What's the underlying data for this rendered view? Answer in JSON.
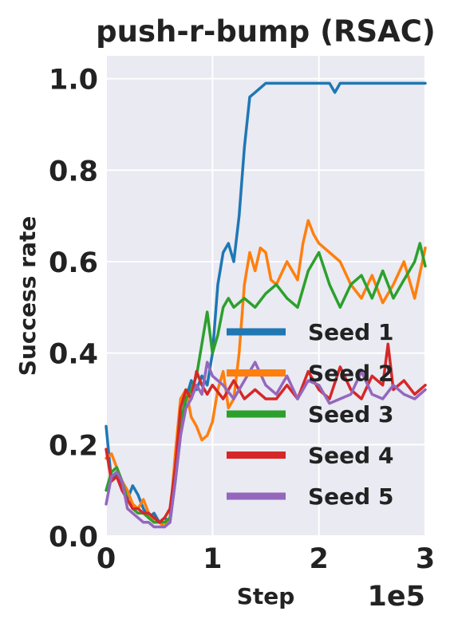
{
  "chart_data": {
    "type": "line",
    "title": "push-r-bump (RSAC)",
    "xlabel": "Step",
    "ylabel": "Success rate",
    "x_multiplier_label": "1e5",
    "xlim": [
      0,
      3
    ],
    "ylim": [
      0,
      1.05
    ],
    "x_ticks": [
      0,
      1,
      2,
      3
    ],
    "x_tick_labels": [
      "0",
      "1",
      "2",
      "3"
    ],
    "y_ticks": [
      0,
      0.2,
      0.4,
      0.6,
      0.8,
      1.0
    ],
    "y_tick_labels": [
      "0.0",
      "0.2",
      "0.4",
      "0.6",
      "0.8",
      "1.0"
    ],
    "grid": true,
    "legend_position": "lower-right",
    "series": [
      {
        "name": "Seed 1",
        "color": "#1f77b4",
        "x": [
          0,
          0.05,
          0.1,
          0.15,
          0.2,
          0.25,
          0.3,
          0.35,
          0.4,
          0.45,
          0.5,
          0.55,
          0.6,
          0.65,
          0.7,
          0.75,
          0.8,
          0.85,
          0.9,
          0.95,
          1.0,
          1.05,
          1.1,
          1.15,
          1.2,
          1.25,
          1.3,
          1.35,
          1.4,
          1.5,
          1.6,
          1.7,
          1.8,
          1.9,
          2.0,
          2.1,
          2.15,
          2.2,
          2.3,
          2.4,
          2.5,
          2.6,
          2.7,
          2.8,
          2.9,
          3.0
        ],
        "y": [
          0.24,
          0.12,
          0.14,
          0.1,
          0.08,
          0.11,
          0.09,
          0.06,
          0.04,
          0.05,
          0.03,
          0.04,
          0.03,
          0.12,
          0.22,
          0.3,
          0.34,
          0.32,
          0.35,
          0.33,
          0.4,
          0.55,
          0.62,
          0.64,
          0.6,
          0.7,
          0.85,
          0.96,
          0.97,
          0.99,
          0.99,
          0.99,
          0.99,
          0.99,
          0.99,
          0.99,
          0.97,
          0.99,
          0.99,
          0.99,
          0.99,
          0.99,
          0.99,
          0.99,
          0.99,
          0.99
        ]
      },
      {
        "name": "Seed 2",
        "color": "#ff7f0e",
        "x": [
          0,
          0.05,
          0.1,
          0.15,
          0.2,
          0.25,
          0.3,
          0.35,
          0.4,
          0.45,
          0.5,
          0.55,
          0.6,
          0.65,
          0.7,
          0.75,
          0.8,
          0.85,
          0.9,
          0.95,
          1.0,
          1.05,
          1.1,
          1.15,
          1.2,
          1.25,
          1.3,
          1.35,
          1.4,
          1.45,
          1.5,
          1.55,
          1.6,
          1.7,
          1.8,
          1.85,
          1.9,
          1.95,
          2.0,
          2.1,
          2.2,
          2.3,
          2.4,
          2.5,
          2.6,
          2.7,
          2.8,
          2.9,
          3.0
        ],
        "y": [
          0.17,
          0.18,
          0.15,
          0.12,
          0.1,
          0.07,
          0.06,
          0.08,
          0.05,
          0.03,
          0.03,
          0.02,
          0.04,
          0.18,
          0.3,
          0.32,
          0.26,
          0.24,
          0.21,
          0.22,
          0.25,
          0.32,
          0.36,
          0.28,
          0.3,
          0.4,
          0.55,
          0.62,
          0.58,
          0.63,
          0.62,
          0.56,
          0.55,
          0.6,
          0.56,
          0.64,
          0.69,
          0.66,
          0.64,
          0.62,
          0.6,
          0.55,
          0.52,
          0.57,
          0.51,
          0.55,
          0.6,
          0.52,
          0.63
        ]
      },
      {
        "name": "Seed 3",
        "color": "#2ca02c",
        "x": [
          0,
          0.05,
          0.1,
          0.15,
          0.2,
          0.25,
          0.3,
          0.35,
          0.4,
          0.45,
          0.5,
          0.55,
          0.6,
          0.65,
          0.7,
          0.75,
          0.8,
          0.85,
          0.9,
          0.95,
          1.0,
          1.05,
          1.1,
          1.15,
          1.2,
          1.3,
          1.4,
          1.5,
          1.6,
          1.7,
          1.8,
          1.9,
          2.0,
          2.1,
          2.2,
          2.3,
          2.4,
          2.5,
          2.6,
          2.7,
          2.8,
          2.9,
          2.95,
          3.0
        ],
        "y": [
          0.1,
          0.14,
          0.15,
          0.12,
          0.08,
          0.06,
          0.05,
          0.05,
          0.04,
          0.03,
          0.03,
          0.03,
          0.04,
          0.12,
          0.25,
          0.3,
          0.32,
          0.35,
          0.42,
          0.49,
          0.4,
          0.44,
          0.5,
          0.52,
          0.5,
          0.52,
          0.5,
          0.53,
          0.55,
          0.52,
          0.5,
          0.58,
          0.62,
          0.55,
          0.5,
          0.55,
          0.57,
          0.52,
          0.58,
          0.52,
          0.56,
          0.6,
          0.64,
          0.59
        ]
      },
      {
        "name": "Seed 4",
        "color": "#d62728",
        "x": [
          0,
          0.05,
          0.1,
          0.15,
          0.2,
          0.25,
          0.3,
          0.35,
          0.4,
          0.45,
          0.5,
          0.55,
          0.6,
          0.65,
          0.7,
          0.75,
          0.8,
          0.85,
          0.9,
          0.95,
          1.0,
          1.1,
          1.2,
          1.3,
          1.4,
          1.5,
          1.6,
          1.7,
          1.8,
          1.9,
          2.0,
          2.1,
          2.2,
          2.3,
          2.4,
          2.5,
          2.6,
          2.65,
          2.7,
          2.8,
          2.9,
          3.0
        ],
        "y": [
          0.19,
          0.12,
          0.13,
          0.1,
          0.08,
          0.06,
          0.06,
          0.05,
          0.05,
          0.04,
          0.03,
          0.04,
          0.06,
          0.15,
          0.28,
          0.32,
          0.3,
          0.36,
          0.33,
          0.31,
          0.33,
          0.3,
          0.34,
          0.3,
          0.32,
          0.3,
          0.3,
          0.33,
          0.3,
          0.36,
          0.32,
          0.3,
          0.37,
          0.32,
          0.3,
          0.35,
          0.33,
          0.42,
          0.32,
          0.34,
          0.31,
          0.33
        ]
      },
      {
        "name": "Seed 5",
        "color": "#9467bd",
        "x": [
          0,
          0.05,
          0.1,
          0.15,
          0.2,
          0.25,
          0.3,
          0.35,
          0.4,
          0.45,
          0.5,
          0.55,
          0.6,
          0.65,
          0.7,
          0.75,
          0.8,
          0.85,
          0.9,
          0.95,
          1.0,
          1.1,
          1.2,
          1.3,
          1.4,
          1.5,
          1.6,
          1.7,
          1.8,
          1.9,
          2.0,
          2.1,
          2.2,
          2.3,
          2.4,
          2.5,
          2.6,
          2.7,
          2.8,
          2.9,
          3.0
        ],
        "y": [
          0.07,
          0.13,
          0.14,
          0.12,
          0.06,
          0.05,
          0.04,
          0.03,
          0.03,
          0.02,
          0.02,
          0.02,
          0.03,
          0.12,
          0.22,
          0.28,
          0.3,
          0.33,
          0.31,
          0.38,
          0.35,
          0.33,
          0.3,
          0.34,
          0.38,
          0.33,
          0.31,
          0.35,
          0.3,
          0.34,
          0.33,
          0.29,
          0.3,
          0.31,
          0.36,
          0.31,
          0.3,
          0.33,
          0.31,
          0.3,
          0.32
        ]
      }
    ]
  }
}
